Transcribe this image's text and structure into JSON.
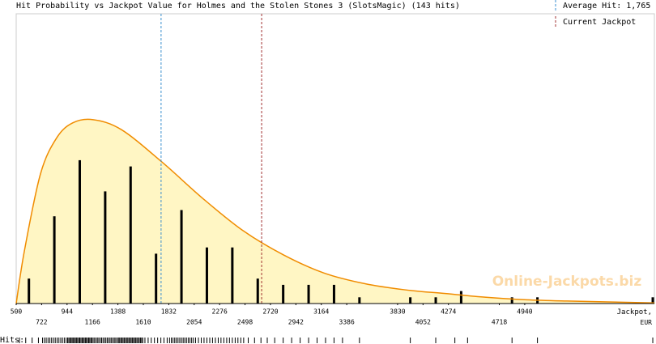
{
  "chart_data": {
    "type": "histogram-density",
    "title": "Hit Probability vs Jackpot Value for Holmes and the Stolen Stones 3 (SlotsMagic) (143 hits)",
    "x_label": "Jackpot, EUR",
    "rug_label": "Hits:",
    "watermark": "Online-Jackpots.biz",
    "average_hit": 1765,
    "average_hit_label": "Average Hit: 1,765",
    "average_color": "#3a8fd0",
    "current_jackpot": 2643,
    "current_jackpot_label": "Current Jackpot",
    "current_color": "#a03030",
    "xlim": [
      500,
      6072
    ],
    "ylim": [
      0,
      46.5
    ],
    "xticks": [
      500,
      722,
      944,
      1166,
      1388,
      1610,
      1832,
      2054,
      2276,
      2498,
      2720,
      2942,
      3164,
      3386,
      3830,
      4052,
      4274,
      4718,
      4940
    ],
    "x": [
      611,
      833,
      1055,
      1277,
      1499,
      1721,
      1943,
      2165,
      2387,
      2609,
      2831,
      3053,
      3275,
      3497,
      3941,
      4163,
      4385,
      4829,
      5051,
      6058
    ],
    "values": [
      4,
      14,
      23,
      18,
      22,
      8,
      15,
      9,
      9,
      4,
      3,
      3,
      3,
      1,
      1,
      1,
      2,
      1,
      1,
      1
    ],
    "bar_color": "#000000",
    "curve": {
      "color": "#f08c00",
      "fill": "#fff6c4",
      "x": [
        500,
        571,
        712,
        854,
        995,
        1172,
        1419,
        1773,
        2127,
        2480,
        2834,
        3187,
        3541,
        3895,
        4248,
        4602,
        4955,
        5309,
        6073
      ],
      "values": [
        0,
        8.4,
        20.8,
        26.6,
        29.0,
        29.5,
        27.9,
        22.7,
        16.9,
        11.7,
        7.8,
        4.9,
        3.2,
        2.2,
        1.6,
        1.0,
        0.6,
        0.4,
        0.1
      ]
    },
    "hits": [
      528,
      583,
      639,
      694,
      730,
      746,
      762,
      778,
      794,
      809,
      825,
      841,
      857,
      873,
      889,
      904,
      920,
      936,
      949,
      959,
      968,
      978,
      988,
      997,
      1007,
      1017,
      1026,
      1036,
      1046,
      1055,
      1065,
      1075,
      1084,
      1094,
      1104,
      1113,
      1123,
      1133,
      1142,
      1152,
      1161,
      1172,
      1184,
      1197,
      1209,
      1221,
      1234,
      1246,
      1258,
      1271,
      1283,
      1295,
      1308,
      1320,
      1332,
      1345,
      1357,
      1369,
      1382,
      1393,
      1403,
      1413,
      1423,
      1433,
      1443,
      1453,
      1464,
      1474,
      1484,
      1494,
      1504,
      1514,
      1524,
      1534,
      1544,
      1554,
      1564,
      1575,
      1585,
      1595,
      1605,
      1624,
      1652,
      1679,
      1707,
      1735,
      1763,
      1790,
      1818,
      1839,
      1854,
      1869,
      1884,
      1898,
      1913,
      1928,
      1943,
      1958,
      1972,
      1987,
      2002,
      2017,
      2032,
      2047,
      2066,
      2091,
      2116,
      2140,
      2165,
      2190,
      2214,
      2239,
      2264,
      2288,
      2313,
      2338,
      2362,
      2387,
      2412,
      2436,
      2461,
      2486,
      2526,
      2581,
      2637,
      2692,
      2757,
      2831,
      2905,
      2979,
      3053,
      3127,
      3201,
      3275,
      3349,
      3497,
      3941,
      4163,
      4330,
      4441,
      4829,
      5051,
      6058
    ]
  }
}
